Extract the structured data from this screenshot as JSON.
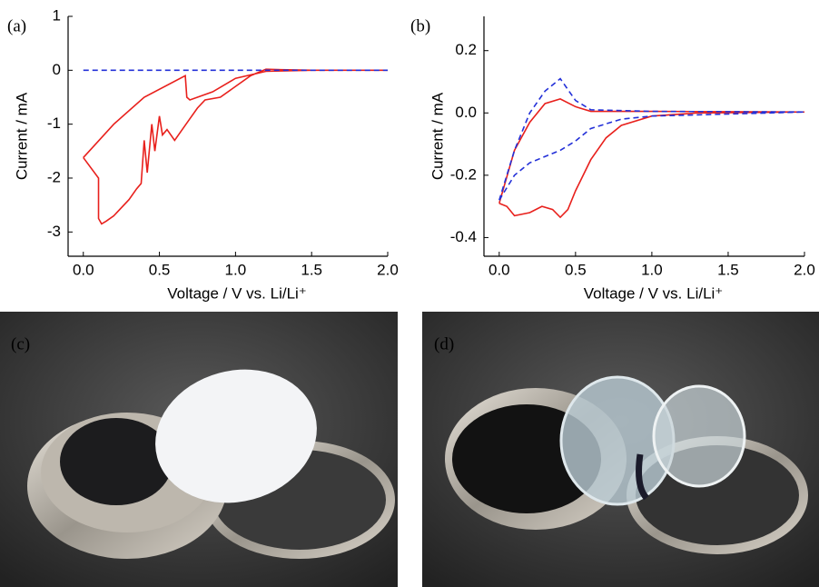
{
  "chart_data": [
    {
      "type": "line",
      "panel_label": "(a)",
      "xlabel": "Voltage / V  vs. Li/Li⁺",
      "ylabel": "Current / mA",
      "xlim": [
        -0.1,
        2.0
      ],
      "xticks": [
        {
          "value": 0,
          "label": "0.0"
        },
        0.5,
        {
          "value": 1.0,
          "label": "1.0"
        },
        1.5,
        {
          "value": 2.0,
          "label": "2.0"
        }
      ],
      "ylim": [
        -3.45,
        1
      ],
      "yticks": [
        -3,
        -2,
        -1,
        0,
        1
      ],
      "series": [
        {
          "color": "#e8201c",
          "dashed": false,
          "x": [
            0,
            0.1,
            0.1,
            0.12,
            0.15,
            0.2,
            0.3,
            0.35,
            0.38,
            0.4,
            0.42,
            0.45,
            0.47,
            0.5,
            0.52,
            0.55,
            0.6,
            0.65,
            0.7,
            0.75,
            0.8,
            0.9,
            1.0,
            1.1,
            1.2,
            1.3,
            1.5,
            2.0,
            1.5,
            1.2,
            1.0,
            0.85,
            0.75,
            0.7,
            0.68,
            0.67,
            0.4,
            0.2,
            0
          ],
          "values": [
            -1.62,
            -2.0,
            -2.75,
            -2.85,
            -2.8,
            -2.7,
            -2.4,
            -2.2,
            -2.1,
            -1.3,
            -1.9,
            -1.0,
            -1.5,
            -0.85,
            -1.2,
            -1.1,
            -1.3,
            -1.1,
            -0.9,
            -0.7,
            -0.55,
            -0.5,
            -0.3,
            -0.1,
            0.02,
            0.01,
            0,
            0,
            0,
            -0.02,
            -0.15,
            -0.4,
            -0.5,
            -0.55,
            -0.5,
            -0.1,
            -0.5,
            -1.0,
            -1.62
          ]
        },
        {
          "color": "#2330d8",
          "dashed": true,
          "x": [
            0,
            2.0
          ],
          "values": [
            0,
            0
          ]
        }
      ]
    },
    {
      "type": "line",
      "panel_label": "(b)",
      "xlabel": "Voltage / V  vs. Li/Li⁺",
      "ylabel": "Current / mA",
      "xlim": [
        -0.1,
        2.0
      ],
      "xticks": [
        {
          "value": 0,
          "label": "0.0"
        },
        0.5,
        {
          "value": 1.0,
          "label": "1.0"
        },
        1.5,
        {
          "value": 2.0,
          "label": "2.0"
        }
      ],
      "ylim": [
        -0.46,
        0.31
      ],
      "yticks": [
        -0.4,
        -0.2,
        {
          "value": 0,
          "label": "0.0"
        },
        0.2
      ],
      "series": [
        {
          "color": "#e8201c",
          "dashed": false,
          "x": [
            0,
            0.05,
            0.1,
            0.2,
            0.28,
            0.35,
            0.4,
            0.45,
            0.5,
            0.6,
            0.7,
            0.8,
            1.0,
            1.3,
            2.0,
            1.0,
            0.6,
            0.5,
            0.4,
            0.3,
            0.2,
            0.1,
            0
          ],
          "values": [
            -0.29,
            -0.3,
            -0.33,
            -0.32,
            -0.3,
            -0.31,
            -0.335,
            -0.31,
            -0.25,
            -0.15,
            -0.08,
            -0.04,
            -0.01,
            0,
            0.003,
            0.005,
            0.005,
            0.02,
            0.045,
            0.03,
            -0.03,
            -0.12,
            -0.29
          ]
        },
        {
          "color": "#2330d8",
          "dashed": true,
          "x": [
            0,
            0.1,
            0.2,
            0.3,
            0.4,
            0.5,
            0.6,
            0.8,
            1.0,
            2.0,
            1.0,
            0.6,
            0.5,
            0.4,
            0.3,
            0.2,
            0.1,
            0
          ],
          "values": [
            -0.28,
            -0.2,
            -0.16,
            -0.14,
            -0.12,
            -0.09,
            -0.05,
            -0.02,
            -0.01,
            0.003,
            0.005,
            0.01,
            0.04,
            0.11,
            0.07,
            0,
            -0.12,
            -0.28
          ]
        }
      ]
    }
  ],
  "photos": [
    {
      "label": "(c)"
    },
    {
      "label": "(d)"
    }
  ]
}
